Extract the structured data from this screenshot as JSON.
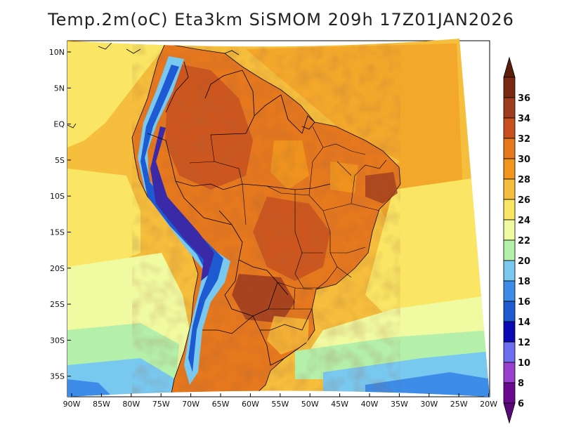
{
  "title": "Temp.2m(oC) Eta3km SiSMOM 209h 17Z01JAN2026",
  "lat_labels": [
    "10N",
    "5N",
    "EQ",
    "5S",
    "10S",
    "15S",
    "20S",
    "25S",
    "30S",
    "35S"
  ],
  "lon_labels": [
    "90W",
    "85W",
    "80W",
    "75W",
    "70W",
    "65W",
    "60W",
    "55W",
    "50W",
    "45W",
    "40W",
    "35W",
    "30W",
    "25W",
    "20W"
  ],
  "colorbar": {
    "ticks": [
      "6",
      "8",
      "10",
      "12",
      "14",
      "16",
      "18",
      "20",
      "22",
      "24",
      "26",
      "28",
      "30",
      "32",
      "34",
      "36"
    ],
    "colors": [
      "#6a0a8e",
      "#9b3fcf",
      "#6e6ef0",
      "#0a0ab4",
      "#1e5ad2",
      "#3c8ce8",
      "#78c8f0",
      "#b4f0aa",
      "#f0faa0",
      "#fae664",
      "#f5be3c",
      "#f0961e",
      "#e6781e",
      "#c8501e",
      "#a03c1e",
      "#7a2a14"
    ],
    "under_color": "#5a0a78",
    "over_color": "#5a1e0a"
  }
}
